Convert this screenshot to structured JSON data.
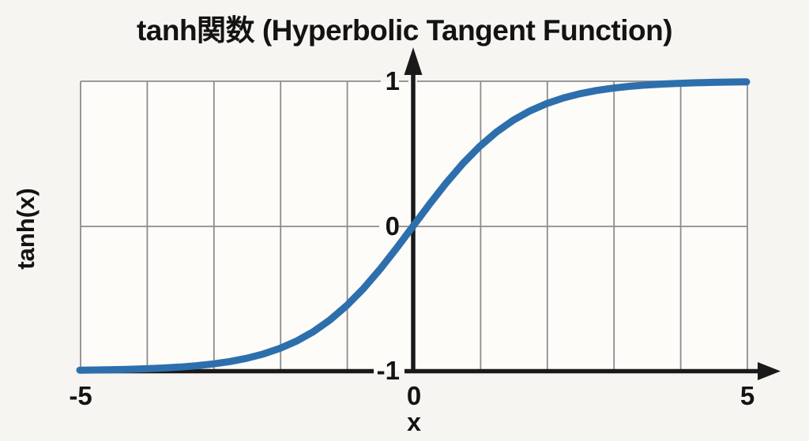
{
  "figure": {
    "title": "tanh関数 (Hyperbolic Tangent Function)",
    "x_axis_label": "x",
    "y_axis_label": "tanh(x)"
  },
  "axes": {
    "y_tick_top": "1",
    "y_tick_mid": "0",
    "y_tick_bottom": "-1",
    "x_tick_left": "-5",
    "x_tick_mid": "0",
    "x_tick_right": "5"
  },
  "colors": {
    "curve": "#2d6fad",
    "axis": "#1a1a1a",
    "grid": "#8d8d8d",
    "background": "#f7f5f1",
    "plot_background": "#fdfcf9"
  },
  "chart_data": {
    "type": "line",
    "title": "tanh関数 (Hyperbolic Tangent Function)",
    "xlabel": "x",
    "ylabel": "tanh(x)",
    "xlim": [
      -5,
      5
    ],
    "ylim": [
      -1,
      1
    ],
    "x_tick_values": [
      -5,
      0,
      5
    ],
    "y_tick_values": [
      -1,
      0,
      1
    ],
    "grid": true,
    "grid_x_interval": 1,
    "grid_y_interval": 1,
    "legend": false,
    "series": [
      {
        "name": "tanh(x)",
        "color": "#2d6fad",
        "x": [
          -5,
          -4.75,
          -4.5,
          -4.25,
          -4,
          -3.75,
          -3.5,
          -3.25,
          -3,
          -2.75,
          -2.5,
          -2.25,
          -2,
          -1.75,
          -1.5,
          -1.25,
          -1,
          -0.75,
          -0.5,
          -0.25,
          0,
          0.25,
          0.5,
          0.75,
          1,
          1.25,
          1.5,
          1.75,
          2,
          2.25,
          2.5,
          2.75,
          3,
          3.25,
          3.5,
          3.75,
          4,
          4.25,
          4.5,
          4.75,
          5
        ],
        "y": [
          -0.9959,
          -0.9945,
          -0.9925,
          -0.9898,
          -0.9861,
          -0.9811,
          -0.9743,
          -0.9651,
          -0.9527,
          -0.936,
          -0.9138,
          -0.8843,
          -0.8455,
          -0.795,
          -0.7306,
          -0.6498,
          -0.5511,
          -0.4341,
          -0.3004,
          -0.1538,
          0,
          0.1538,
          0.3004,
          0.4341,
          0.5511,
          0.6498,
          0.7306,
          0.795,
          0.8455,
          0.8843,
          0.9138,
          0.936,
          0.9527,
          0.9651,
          0.9743,
          0.9811,
          0.9861,
          0.9898,
          0.9925,
          0.9945,
          0.9959
        ]
      }
    ]
  }
}
